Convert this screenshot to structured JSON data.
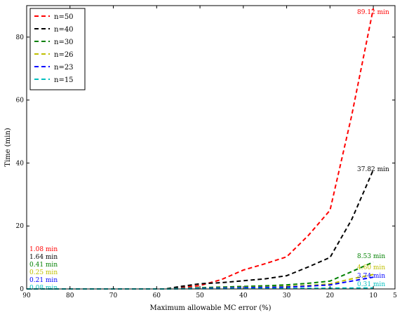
{
  "chart_data": {
    "type": "line",
    "xlabel": "Maximum allowable MC error (%)",
    "ylabel": "Time (min)",
    "xlim": [
      90,
      5
    ],
    "ylim": [
      0,
      90
    ],
    "x_ticks": [
      "90",
      "80",
      "70",
      "60",
      "50",
      "40",
      "30",
      "20",
      "10",
      "5"
    ],
    "y_ticks": [
      "0",
      "20",
      "40",
      "60",
      "80"
    ],
    "grid": false,
    "legend_position": "top-left",
    "x": [
      90,
      80,
      70,
      60,
      58,
      55,
      50,
      45,
      40,
      35,
      30,
      25,
      20,
      15,
      10
    ],
    "series": [
      {
        "name": "n=50",
        "color": "#ff0000",
        "values": [
          0,
          0,
          0,
          0,
          0,
          0.4,
          1.08,
          3.0,
          6.0,
          8.0,
          10.2,
          17,
          25,
          55,
          89.12
        ],
        "left_label": "1.08 min",
        "right_label": "89.12 min"
      },
      {
        "name": "n=40",
        "color": "#000000",
        "values": [
          0,
          0,
          0,
          0,
          0,
          0.7,
          1.64,
          2.0,
          2.6,
          3.2,
          4.2,
          7.0,
          10,
          22,
          37.82
        ],
        "left_label": "1.64 min",
        "right_label": "37.82 min"
      },
      {
        "name": "n=30",
        "color": "#008000",
        "values": [
          0,
          0,
          0,
          0,
          0,
          0.2,
          0.41,
          0.6,
          0.8,
          1.0,
          1.3,
          1.8,
          2.5,
          5.5,
          8.53
        ],
        "left_label": "0.41 min",
        "right_label": "8.53 min"
      },
      {
        "name": "n=26",
        "color": "#bfbf00",
        "values": [
          0,
          0,
          0,
          0,
          0,
          0.1,
          0.25,
          0.35,
          0.5,
          0.6,
          0.8,
          1.1,
          1.6,
          3.2,
          4.6
        ],
        "left_label": "0.25 min",
        "right_label": "4.60 min"
      },
      {
        "name": "n=23",
        "color": "#0000ff",
        "values": [
          0,
          0,
          0,
          0,
          0,
          0.1,
          0.21,
          0.3,
          0.4,
          0.5,
          0.6,
          0.9,
          1.3,
          2.5,
          3.74
        ],
        "left_label": "0.21 min",
        "right_label": "3.74 min"
      },
      {
        "name": "n=15",
        "color": "#00bfbf",
        "values": [
          0,
          0,
          0,
          0,
          0,
          0.03,
          0.08,
          0.1,
          0.12,
          0.14,
          0.16,
          0.2,
          0.25,
          0.3,
          0.31
        ],
        "left_label": "0.08 min",
        "right_label": "0.31 min"
      }
    ]
  }
}
